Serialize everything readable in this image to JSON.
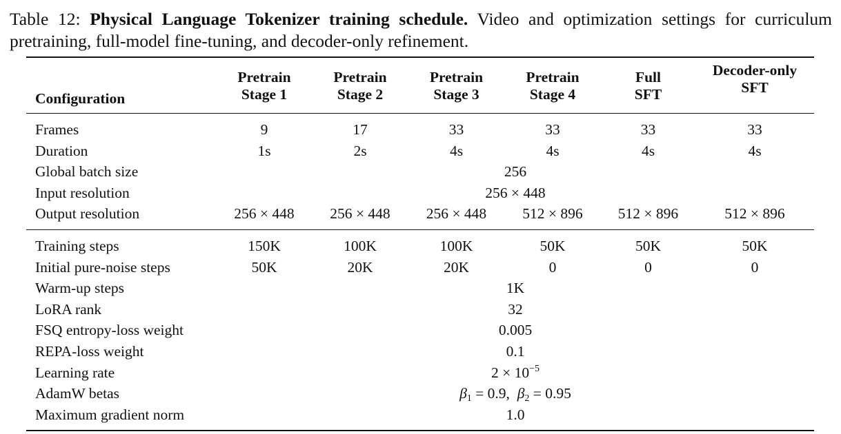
{
  "caption": {
    "label": "Table 12:",
    "title": "Physical Language Tokenizer training schedule.",
    "text": "Video and optimization settings for curriculum pretraining, full-model fine-tuning, and decoder-only refinement."
  },
  "header": {
    "config": "Configuration",
    "cols": [
      {
        "line1": "Pretrain",
        "line2": "Stage 1"
      },
      {
        "line1": "Pretrain",
        "line2": "Stage 2"
      },
      {
        "line1": "Pretrain",
        "line2": "Stage 3"
      },
      {
        "line1": "Pretrain",
        "line2": "Stage 4"
      },
      {
        "line1": "Full",
        "line2": "SFT"
      },
      {
        "line1": "Decoder-only",
        "line2": "SFT"
      }
    ]
  },
  "rows": {
    "frames": {
      "label": "Frames",
      "values": [
        "9",
        "17",
        "33",
        "33",
        "33",
        "33"
      ]
    },
    "duration": {
      "label": "Duration",
      "values": [
        "1s",
        "2s",
        "4s",
        "4s",
        "4s",
        "4s"
      ]
    },
    "batch": {
      "label": "Global batch size",
      "value": "256"
    },
    "input_res": {
      "label": "Input resolution",
      "value": "256 × 448"
    },
    "output_res": {
      "label": "Output resolution",
      "values": [
        "256 × 448",
        "256 × 448",
        "256 × 448",
        "512 × 896",
        "512 × 896",
        "512 × 896"
      ]
    },
    "train_steps": {
      "label": "Training steps",
      "values": [
        "150K",
        "100K",
        "100K",
        "50K",
        "50K",
        "50K"
      ]
    },
    "noise_steps": {
      "label": "Initial pure-noise steps",
      "values": [
        "50K",
        "20K",
        "20K",
        "0",
        "0",
        "0"
      ]
    },
    "warmup": {
      "label": "Warm-up steps",
      "value": "1K"
    },
    "lora": {
      "label": "LoRA rank",
      "value": "32"
    },
    "fsq": {
      "label": "FSQ entropy-loss weight",
      "value": "0.005"
    },
    "repa": {
      "label": "REPA-loss weight",
      "value": "0.1"
    },
    "lr": {
      "label": "Learning rate",
      "mantissa": "2 × 10",
      "exponent": "−5"
    },
    "betas": {
      "label": "AdamW betas",
      "b1_sym": "β",
      "b1_sub": "1",
      "b1_val": " = 0.9,",
      "b2_sym": "β",
      "b2_sub": "2",
      "b2_val": " = 0.95"
    },
    "gradnorm": {
      "label": "Maximum gradient norm",
      "value": "1.0"
    }
  }
}
